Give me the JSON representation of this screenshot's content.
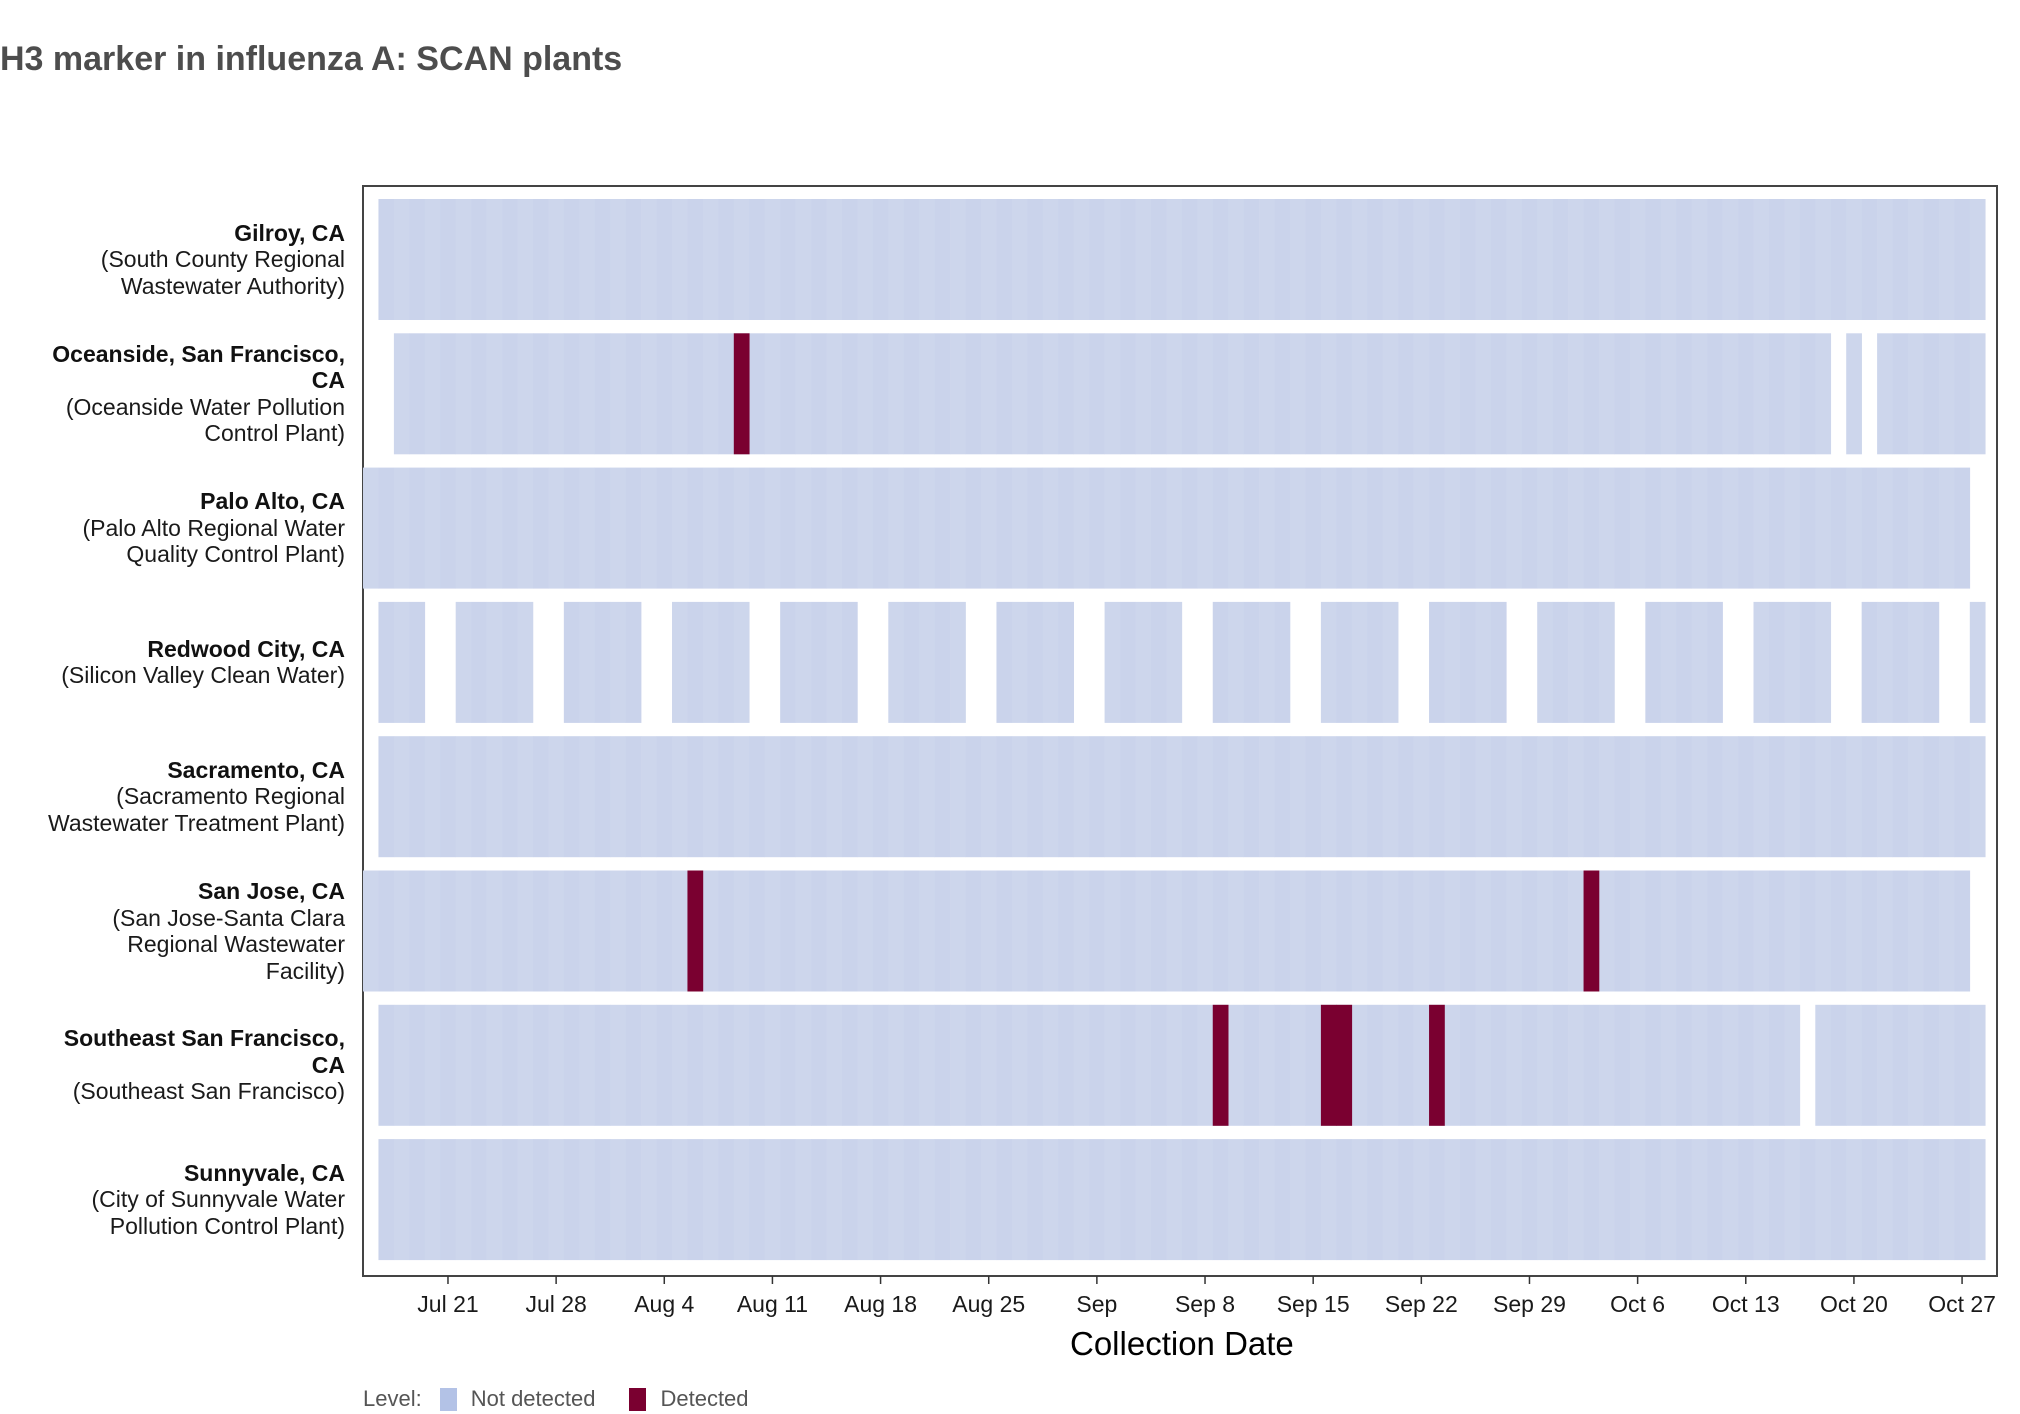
{
  "title": "H3 marker in influenza A: SCAN plants",
  "legend": {
    "label": "Level:",
    "items": [
      {
        "name": "Not detected",
        "color": "#c9d3eb"
      },
      {
        "name": "Detected",
        "color": "#7a0030"
      }
    ]
  },
  "chart_data": {
    "type": "heatmap",
    "xlabel": "Collection Date",
    "x_range": [
      "2024-07-16",
      "2024-10-29"
    ],
    "x_ticks": [
      "Jul 21",
      "Jul 28",
      "Aug 4",
      "Aug 11",
      "Aug 18",
      "Aug 25",
      "Sep",
      "Sep 8",
      "Sep 15",
      "Sep 22",
      "Sep 29",
      "Oct 6",
      "Oct 13",
      "Oct 20",
      "Oct 27"
    ],
    "rows": [
      {
        "name": "Gilroy, CA",
        "sub": "(South County Regional Wastewater Authority)",
        "segments": [
          [
            "2024-07-17",
            "2024-10-17"
          ],
          [
            "2024-10-18",
            "2024-10-28"
          ]
        ],
        "detected": []
      },
      {
        "name": "Oceanside, San Francisco, CA",
        "sub": "(Oceanside Water Pollution Control Plant)",
        "segments": [
          [
            "2024-07-18",
            "2024-08-06"
          ],
          [
            "2024-08-07",
            "2024-10-17"
          ],
          [
            "2024-10-18",
            "2024-10-18"
          ],
          [
            "2024-10-20",
            "2024-10-20"
          ],
          [
            "2024-10-22",
            "2024-10-28"
          ]
        ],
        "detected": [
          "2024-08-09"
        ]
      },
      {
        "name": "Palo Alto, CA",
        "sub": "(Palo Alto Regional Water Quality Control Plant)",
        "segments": [
          [
            "2024-07-16",
            "2024-10-16"
          ],
          [
            "2024-10-17",
            "2024-10-27"
          ]
        ],
        "detected": []
      },
      {
        "name": "Redwood City, CA",
        "sub": "(Silicon Valley Clean Water)",
        "segments": [
          [
            "2024-07-17",
            "2024-07-19"
          ],
          [
            "2024-07-22",
            "2024-07-26"
          ],
          [
            "2024-07-29",
            "2024-08-02"
          ],
          [
            "2024-08-05",
            "2024-08-09"
          ],
          [
            "2024-08-12",
            "2024-08-16"
          ],
          [
            "2024-08-19",
            "2024-08-23"
          ],
          [
            "2024-08-26",
            "2024-08-30"
          ],
          [
            "2024-09-02",
            "2024-09-06"
          ],
          [
            "2024-09-09",
            "2024-09-13"
          ],
          [
            "2024-09-16",
            "2024-09-20"
          ],
          [
            "2024-09-23",
            "2024-09-27"
          ],
          [
            "2024-09-30",
            "2024-10-04"
          ],
          [
            "2024-10-07",
            "2024-10-11"
          ],
          [
            "2024-10-14",
            "2024-10-17"
          ],
          [
            "2024-10-18",
            "2024-10-18"
          ],
          [
            "2024-10-21",
            "2024-10-25"
          ],
          [
            "2024-10-28",
            "2024-10-28"
          ]
        ],
        "detected": []
      },
      {
        "name": "Sacramento, CA",
        "sub": "(Sacramento Regional Wastewater Treatment Plant)",
        "segments": [
          [
            "2024-07-17",
            "2024-10-17"
          ],
          [
            "2024-10-18",
            "2024-10-28"
          ]
        ],
        "detected": []
      },
      {
        "name": "San Jose, CA",
        "sub": "(San Jose-Santa Clara Regional Wastewater Facility)",
        "segments": [
          [
            "2024-07-16",
            "2024-08-08"
          ],
          [
            "2024-08-09",
            "2024-10-16"
          ],
          [
            "2024-10-17",
            "2024-10-27"
          ]
        ],
        "detected": [
          "2024-08-06",
          "2024-10-03"
        ]
      },
      {
        "name": "Southeast San Francisco, CA",
        "sub": "(Southeast San Francisco)",
        "segments": [
          [
            "2024-07-17",
            "2024-07-23"
          ],
          [
            "2024-07-24",
            "2024-08-29"
          ],
          [
            "2024-08-30",
            "2024-10-04"
          ],
          [
            "2024-10-05",
            "2024-10-16"
          ],
          [
            "2024-10-18",
            "2024-10-28"
          ]
        ],
        "detected": [
          "2024-09-09",
          "2024-09-16",
          "2024-09-17",
          "2024-09-23"
        ]
      },
      {
        "name": "Sunnyvale, CA",
        "sub": "(City of Sunnyvale Water Pollution Control Plant)",
        "segments": [
          [
            "2024-07-17",
            "2024-10-17"
          ],
          [
            "2024-10-18",
            "2024-10-28"
          ]
        ],
        "detected": []
      }
    ]
  }
}
